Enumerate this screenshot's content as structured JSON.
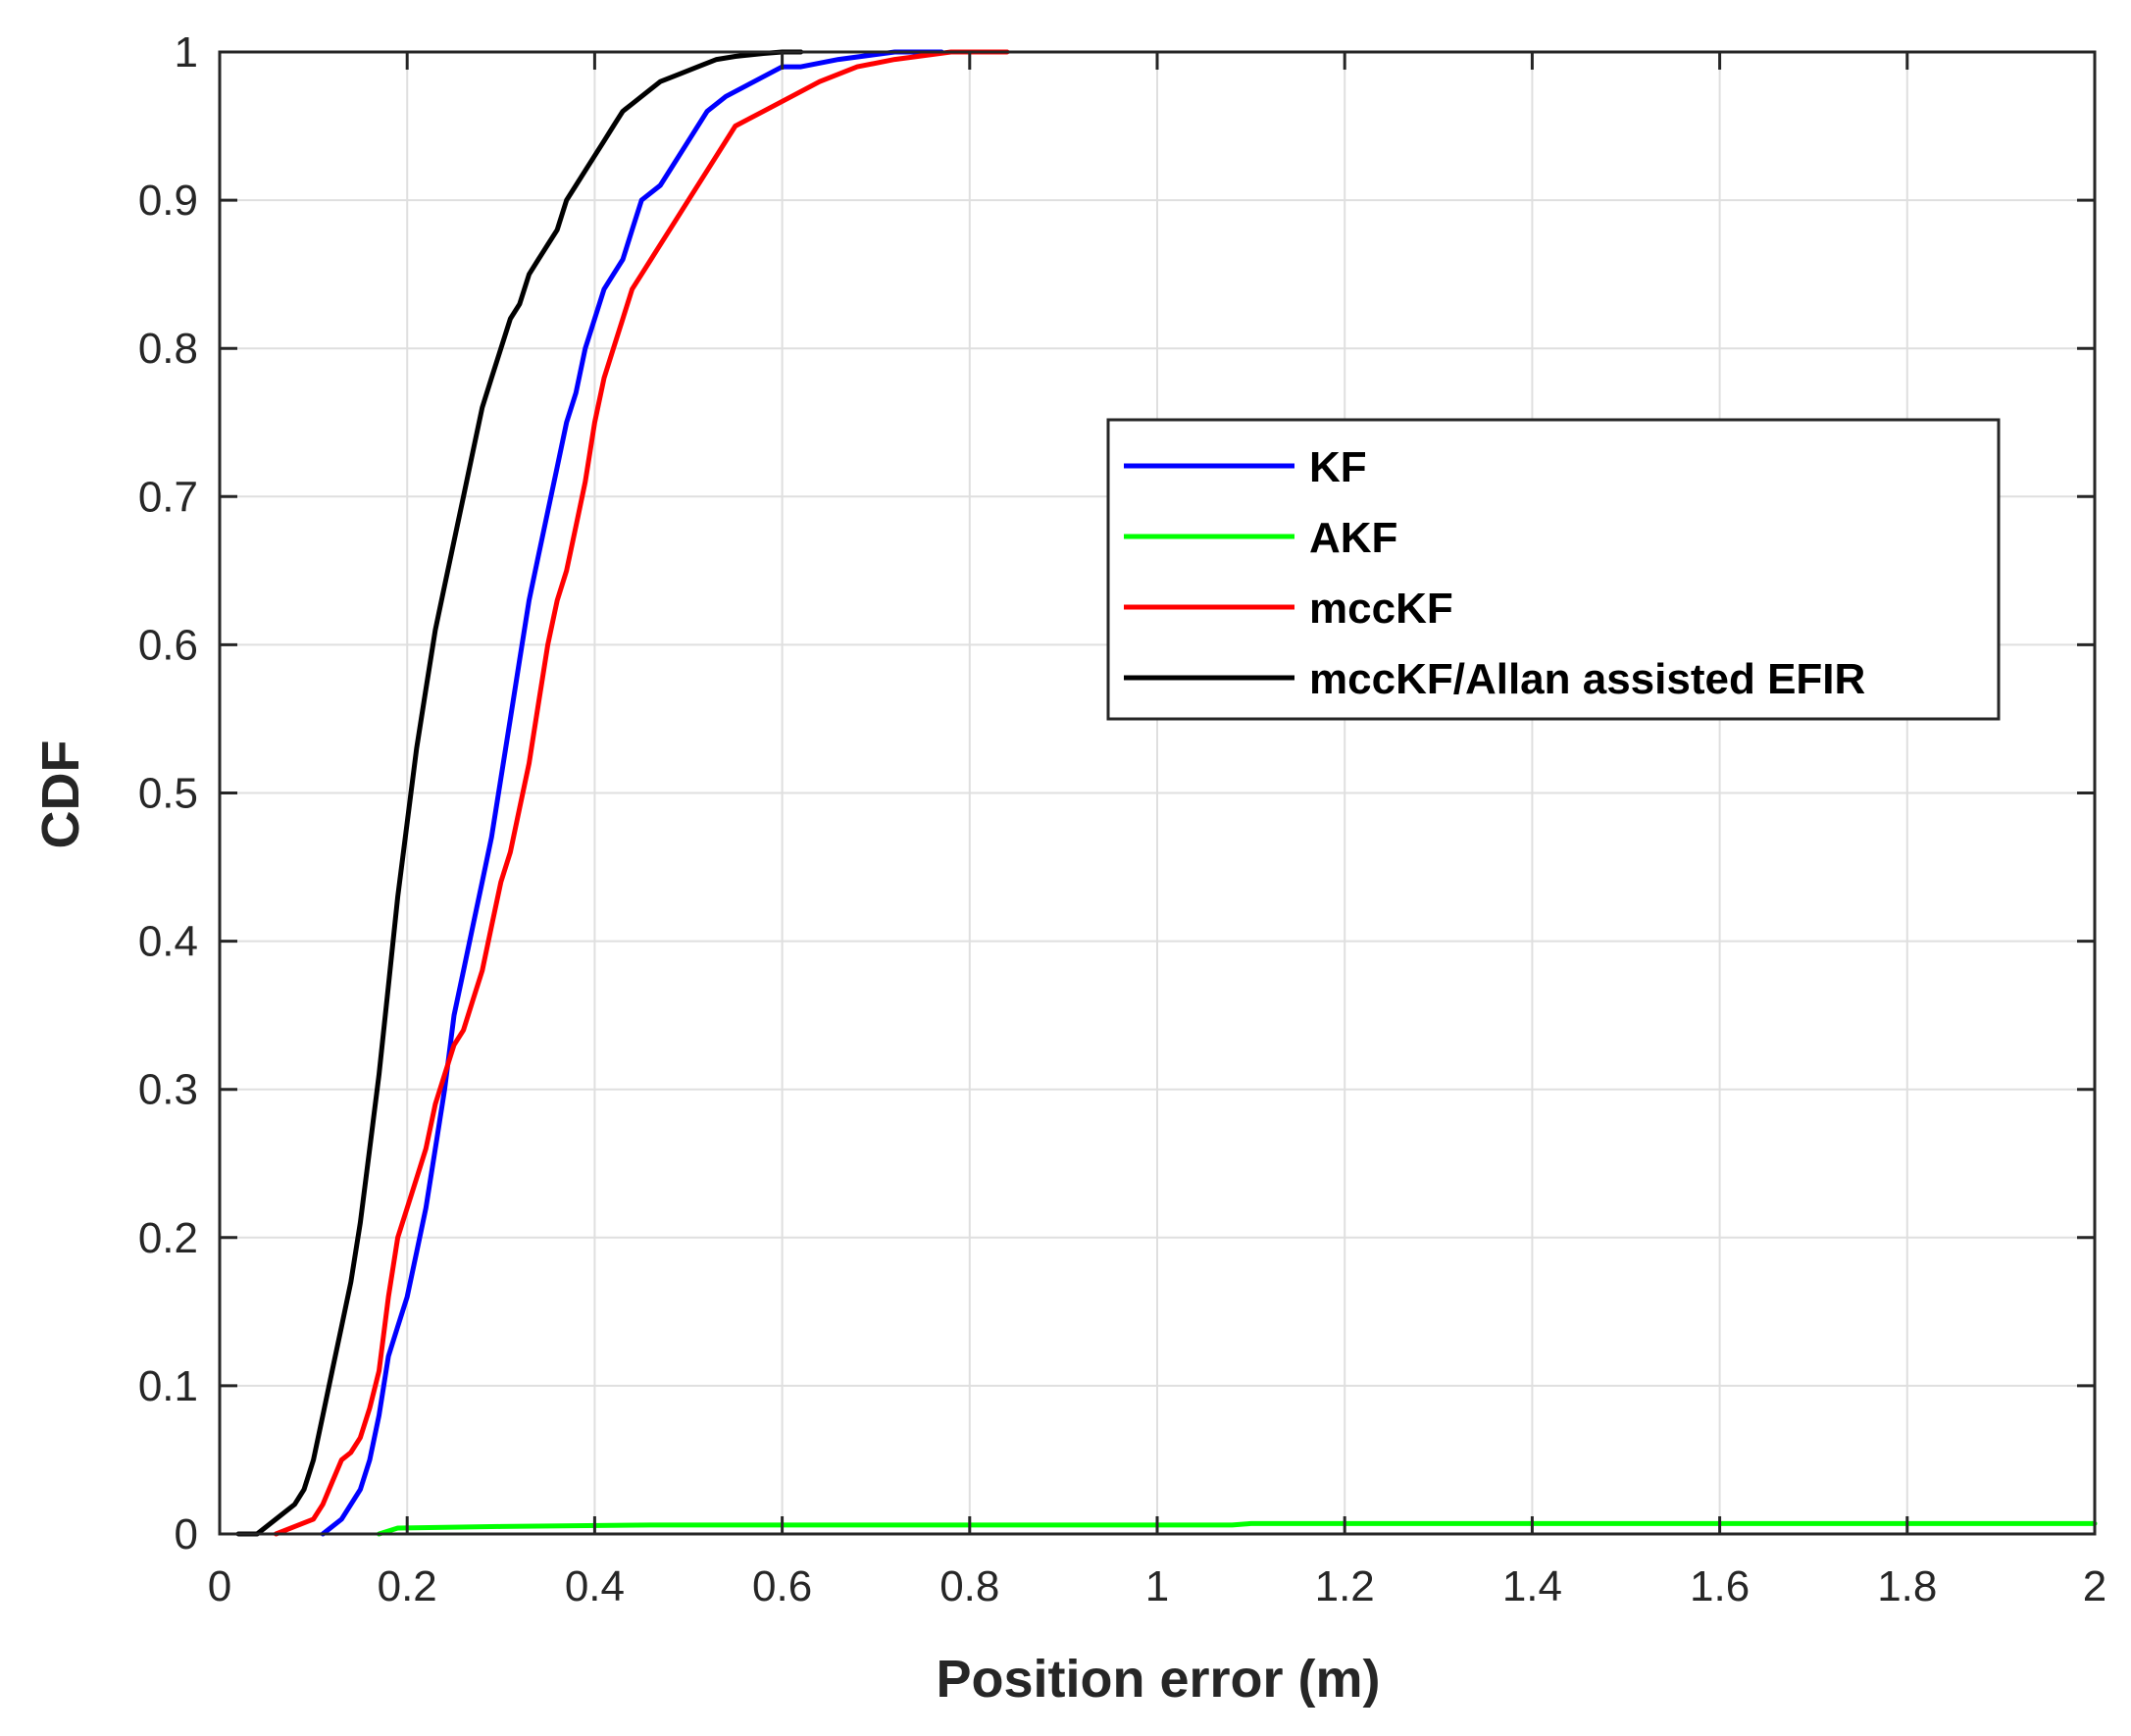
{
  "chart_data": {
    "type": "line",
    "title": "",
    "xlabel": "Position error (m)",
    "ylabel": "CDF",
    "xlim": [
      0,
      2
    ],
    "ylim": [
      0,
      1
    ],
    "xticks": [
      "0",
      "0.2",
      "0.4",
      "0.6",
      "0.8",
      "1",
      "1.2",
      "1.4",
      "1.6",
      "1.8",
      "2"
    ],
    "yticks": [
      "0",
      "0.1",
      "0.2",
      "0.3",
      "0.4",
      "0.5",
      "0.6",
      "0.7",
      "0.8",
      "0.9",
      "1"
    ],
    "grid": true,
    "legend_position": "center-right",
    "series": [
      {
        "name": "KF",
        "color": "#0000ff",
        "x": [
          0.11,
          0.13,
          0.15,
          0.16,
          0.17,
          0.18,
          0.19,
          0.2,
          0.21,
          0.22,
          0.23,
          0.24,
          0.25,
          0.26,
          0.27,
          0.28,
          0.29,
          0.3,
          0.31,
          0.32,
          0.33,
          0.34,
          0.35,
          0.36,
          0.37,
          0.38,
          0.39,
          0.4,
          0.41,
          0.42,
          0.43,
          0.44,
          0.45,
          0.47,
          0.48,
          0.5,
          0.52,
          0.54,
          0.57,
          0.6,
          0.62,
          0.66,
          0.72,
          0.77
        ],
        "y": [
          0.0,
          0.01,
          0.03,
          0.05,
          0.08,
          0.12,
          0.14,
          0.16,
          0.19,
          0.22,
          0.26,
          0.3,
          0.35,
          0.38,
          0.41,
          0.44,
          0.47,
          0.51,
          0.55,
          0.59,
          0.63,
          0.66,
          0.69,
          0.72,
          0.75,
          0.77,
          0.8,
          0.82,
          0.84,
          0.85,
          0.86,
          0.88,
          0.9,
          0.91,
          0.92,
          0.94,
          0.96,
          0.97,
          0.98,
          0.99,
          0.99,
          0.995,
          1.0,
          1.0
        ]
      },
      {
        "name": "AKF",
        "color": "#00ff00",
        "x": [
          0.17,
          0.19,
          0.3,
          0.46,
          0.6,
          1.08,
          1.1,
          1.6,
          2.0
        ],
        "y": [
          0.0,
          0.004,
          0.005,
          0.006,
          0.006,
          0.006,
          0.007,
          0.007,
          0.007
        ]
      },
      {
        "name": "mccKF",
        "color": "#ff0000",
        "x": [
          0.06,
          0.08,
          0.1,
          0.11,
          0.12,
          0.13,
          0.14,
          0.15,
          0.16,
          0.17,
          0.18,
          0.19,
          0.2,
          0.21,
          0.22,
          0.23,
          0.24,
          0.25,
          0.26,
          0.27,
          0.28,
          0.29,
          0.3,
          0.31,
          0.32,
          0.33,
          0.34,
          0.35,
          0.36,
          0.37,
          0.38,
          0.39,
          0.4,
          0.41,
          0.42,
          0.43,
          0.44,
          0.45,
          0.46,
          0.47,
          0.48,
          0.5,
          0.52,
          0.55,
          0.58,
          0.61,
          0.64,
          0.68,
          0.72,
          0.78,
          0.84
        ],
        "y": [
          0.0,
          0.005,
          0.01,
          0.02,
          0.035,
          0.05,
          0.055,
          0.065,
          0.085,
          0.11,
          0.16,
          0.2,
          0.22,
          0.24,
          0.26,
          0.29,
          0.31,
          0.33,
          0.34,
          0.36,
          0.38,
          0.41,
          0.44,
          0.46,
          0.49,
          0.52,
          0.56,
          0.6,
          0.63,
          0.65,
          0.68,
          0.71,
          0.75,
          0.78,
          0.8,
          0.82,
          0.84,
          0.85,
          0.86,
          0.87,
          0.88,
          0.9,
          0.92,
          0.95,
          0.96,
          0.97,
          0.98,
          0.99,
          0.995,
          1.0,
          1.0
        ]
      },
      {
        "name": "mccKF/Allan assisted EFIR",
        "color": "#000000",
        "x": [
          0.02,
          0.04,
          0.06,
          0.08,
          0.09,
          0.1,
          0.11,
          0.12,
          0.13,
          0.14,
          0.15,
          0.16,
          0.17,
          0.18,
          0.19,
          0.2,
          0.21,
          0.22,
          0.23,
          0.24,
          0.25,
          0.26,
          0.27,
          0.28,
          0.29,
          0.3,
          0.31,
          0.32,
          0.33,
          0.34,
          0.35,
          0.36,
          0.37,
          0.38,
          0.39,
          0.4,
          0.41,
          0.42,
          0.43,
          0.44,
          0.45,
          0.47,
          0.49,
          0.51,
          0.53,
          0.55,
          0.58,
          0.6,
          0.62
        ],
        "y": [
          0.0,
          0.0,
          0.01,
          0.02,
          0.03,
          0.05,
          0.08,
          0.11,
          0.14,
          0.17,
          0.21,
          0.26,
          0.31,
          0.37,
          0.43,
          0.48,
          0.53,
          0.57,
          0.61,
          0.64,
          0.67,
          0.7,
          0.73,
          0.76,
          0.78,
          0.8,
          0.82,
          0.83,
          0.85,
          0.86,
          0.87,
          0.88,
          0.9,
          0.91,
          0.92,
          0.93,
          0.94,
          0.95,
          0.96,
          0.965,
          0.97,
          0.98,
          0.985,
          0.99,
          0.995,
          0.997,
          0.999,
          1.0,
          1.0
        ]
      }
    ]
  }
}
